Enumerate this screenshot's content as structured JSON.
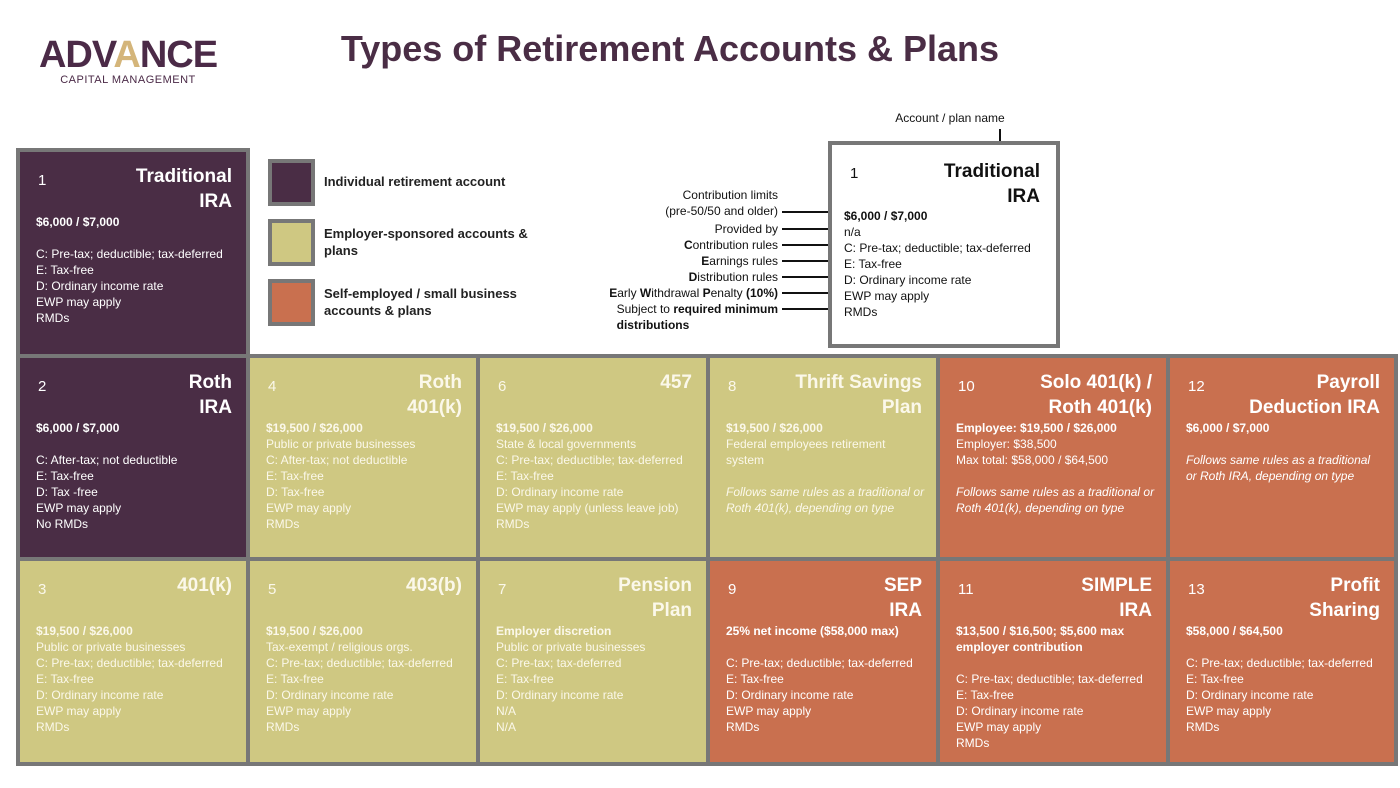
{
  "logo": {
    "word_pre": "ADV",
    "word_a": "A",
    "word_post": "NCE",
    "subtitle": "CAPITAL MANAGEMENT"
  },
  "title": "Types of Retirement Accounts & Plans",
  "colors": {
    "individual": "#4a2d45",
    "employer": "#cfc882",
    "self_employed": "#c9704f",
    "border": "#777777"
  },
  "legend": [
    {
      "label": "Individual retirement account",
      "color": "purple"
    },
    {
      "label": "Employer-sponsored accounts & plans",
      "color": "yellow"
    },
    {
      "label": "Self-employed / small business accounts & plans",
      "color": "orange"
    }
  ],
  "key": {
    "name_label": "Account / plan name",
    "number": "1",
    "title": [
      "Traditional",
      "IRA"
    ],
    "rows": [
      {
        "label": [
          {
            "t": "Contribution limits"
          }
        ],
        "label2": [
          {
            "t": "(pre-50/50 and older)"
          }
        ],
        "value": "$6,000 / $7,000",
        "bold": true
      },
      {
        "label": [
          {
            "t": "Provided by"
          }
        ],
        "value": "n/a"
      },
      {
        "label": [
          {
            "t": "C",
            "b": true
          },
          {
            "t": "ontribution rules"
          }
        ],
        "value": "C: Pre-tax; deductible; tax-deferred"
      },
      {
        "label": [
          {
            "t": "E",
            "b": true
          },
          {
            "t": "arnings rules"
          }
        ],
        "value": "E: Tax-free"
      },
      {
        "label": [
          {
            "t": "D",
            "b": true
          },
          {
            "t": "istribution rules"
          }
        ],
        "value": "D: Ordinary income rate"
      },
      {
        "label": [
          {
            "t": "E",
            "b": true
          },
          {
            "t": "arly "
          },
          {
            "t": "W",
            "b": true
          },
          {
            "t": "ithdrawal "
          },
          {
            "t": "P",
            "b": true
          },
          {
            "t": "enalty "
          },
          {
            "t": "(10%)",
            "b": true
          }
        ],
        "value": "EWP may apply"
      },
      {
        "label": [
          {
            "t": "Subject to "
          },
          {
            "t": "required minimum",
            "b": true
          }
        ],
        "label2": [
          {
            "t": "distributions",
            "b": true
          }
        ],
        "value": "RMDs"
      }
    ]
  },
  "cells": [
    {
      "number": "1",
      "title": [
        "Traditional",
        "IRA"
      ],
      "color": "purple",
      "lines": [
        {
          "t": "$6,000 / $7,000",
          "s": "b"
        },
        {
          "t": "",
          "s": "blank"
        },
        {
          "t": "C: Pre-tax; deductible; tax-deferred"
        },
        {
          "t": "E: Tax-free"
        },
        {
          "t": "D: Ordinary income rate"
        },
        {
          "t": "EWP may apply"
        },
        {
          "t": "RMDs"
        }
      ]
    },
    {
      "number": "2",
      "title": [
        "Roth",
        "IRA"
      ],
      "color": "purple",
      "lines": [
        {
          "t": "$6,000 / $7,000",
          "s": "b"
        },
        {
          "t": "",
          "s": "blank"
        },
        {
          "t": "C: After-tax; not deductible"
        },
        {
          "t": "E: Tax-free"
        },
        {
          "t": "D: Tax -free"
        },
        {
          "t": "EWP may apply"
        },
        {
          "t": "No RMDs"
        }
      ]
    },
    {
      "number": "3",
      "title": [
        "401(k)"
      ],
      "color": "yellow",
      "lines": [
        {
          "t": "$19,500 / $26,000",
          "s": "b"
        },
        {
          "t": "Public or private businesses"
        },
        {
          "t": "C: Pre-tax; deductible; tax-deferred"
        },
        {
          "t": "E: Tax-free"
        },
        {
          "t": "D: Ordinary income rate"
        },
        {
          "t": "EWP may apply"
        },
        {
          "t": "RMDs"
        }
      ]
    },
    {
      "number": "4",
      "title": [
        "Roth",
        "401(k)"
      ],
      "color": "yellow",
      "lines": [
        {
          "t": "$19,500 / $26,000",
          "s": "b"
        },
        {
          "t": "Public or private businesses"
        },
        {
          "t": "C: After-tax; not deductible"
        },
        {
          "t": "E: Tax-free"
        },
        {
          "t": "D: Tax-free"
        },
        {
          "t": "EWP may apply"
        },
        {
          "t": "RMDs"
        }
      ]
    },
    {
      "number": "5",
      "title": [
        "403(b)"
      ],
      "color": "yellow",
      "lines": [
        {
          "t": "$19,500 / $26,000",
          "s": "b"
        },
        {
          "t": "Tax-exempt / religious orgs."
        },
        {
          "t": "C: Pre-tax; deductible; tax-deferred"
        },
        {
          "t": "E: Tax-free"
        },
        {
          "t": "D: Ordinary income rate"
        },
        {
          "t": "EWP may apply"
        },
        {
          "t": "RMDs"
        }
      ]
    },
    {
      "number": "6",
      "title": [
        "457"
      ],
      "color": "yellow",
      "lines": [
        {
          "t": "$19,500 / $26,000",
          "s": "b"
        },
        {
          "t": "State & local governments"
        },
        {
          "t": "C: Pre-tax; deductible; tax-deferred"
        },
        {
          "t": "E: Tax-free"
        },
        {
          "t": "D: Ordinary income rate"
        },
        {
          "t": "EWP may apply (unless leave job)"
        },
        {
          "t": "RMDs"
        }
      ]
    },
    {
      "number": "7",
      "title": [
        "Pension",
        "Plan"
      ],
      "color": "yellow",
      "lines": [
        {
          "t": "Employer discretion",
          "s": "b"
        },
        {
          "t": "Public or private businesses"
        },
        {
          "t": "C: Pre-tax; tax-deferred"
        },
        {
          "t": "E: Tax-free"
        },
        {
          "t": "D: Ordinary income rate"
        },
        {
          "t": "N/A"
        },
        {
          "t": "N/A"
        }
      ]
    },
    {
      "number": "8",
      "title": [
        "Thrift Savings",
        "Plan"
      ],
      "color": "yellow",
      "lines": [
        {
          "t": "$19,500 / $26,000",
          "s": "b"
        },
        {
          "t": "Federal employees retirement system"
        },
        {
          "t": "",
          "s": "blank"
        },
        {
          "t": "Follows same rules as a traditional or Roth 401(k), depending on type",
          "s": "i"
        }
      ]
    },
    {
      "number": "9",
      "title": [
        "SEP",
        "IRA"
      ],
      "color": "orange",
      "lines": [
        {
          "t": "25% net income ($58,000 max)",
          "s": "b"
        },
        {
          "t": "",
          "s": "blank"
        },
        {
          "t": "C: Pre-tax; deductible; tax-deferred"
        },
        {
          "t": "E: Tax-free"
        },
        {
          "t": "D: Ordinary income rate"
        },
        {
          "t": "EWP may apply"
        },
        {
          "t": "RMDs"
        }
      ]
    },
    {
      "number": "10",
      "title": [
        "Solo 401(k) /",
        "Roth 401(k)"
      ],
      "color": "orange",
      "lines": [
        {
          "t": "Employee: $19,500 / $26,000",
          "s": "b"
        },
        {
          "t": "Employer: $38,500"
        },
        {
          "t": "Max total: $58,000 / $64,500"
        },
        {
          "t": "",
          "s": "blank"
        },
        {
          "t": "Follows same rules as a traditional or Roth 401(k), depending on type",
          "s": "i"
        }
      ]
    },
    {
      "number": "11",
      "title": [
        "SIMPLE",
        "IRA"
      ],
      "color": "orange",
      "lines": [
        {
          "t": "$13,500 / $16,500; $5,600 max employer contribution",
          "s": "b"
        },
        {
          "t": "",
          "s": "blank"
        },
        {
          "t": "C: Pre-tax; deductible; tax-deferred"
        },
        {
          "t": "E: Tax-free"
        },
        {
          "t": "D: Ordinary income rate"
        },
        {
          "t": "EWP may apply"
        },
        {
          "t": "RMDs"
        }
      ]
    },
    {
      "number": "12",
      "title": [
        "Payroll",
        "Deduction IRA"
      ],
      "color": "orange",
      "lines": [
        {
          "t": "$6,000 / $7,000",
          "s": "b"
        },
        {
          "t": "",
          "s": "blank"
        },
        {
          "t": "Follows same rules as a traditional or Roth IRA, depending on type",
          "s": "i"
        }
      ]
    },
    {
      "number": "13",
      "title": [
        "Profit",
        "Sharing"
      ],
      "color": "orange",
      "lines": [
        {
          "t": "$58,000 / $64,500",
          "s": "b"
        },
        {
          "t": "",
          "s": "blank"
        },
        {
          "t": "C: Pre-tax; deductible; tax-deferred"
        },
        {
          "t": "E: Tax-free"
        },
        {
          "t": "D: Ordinary income rate"
        },
        {
          "t": "EWP may apply"
        },
        {
          "t": "RMDs"
        }
      ]
    }
  ]
}
